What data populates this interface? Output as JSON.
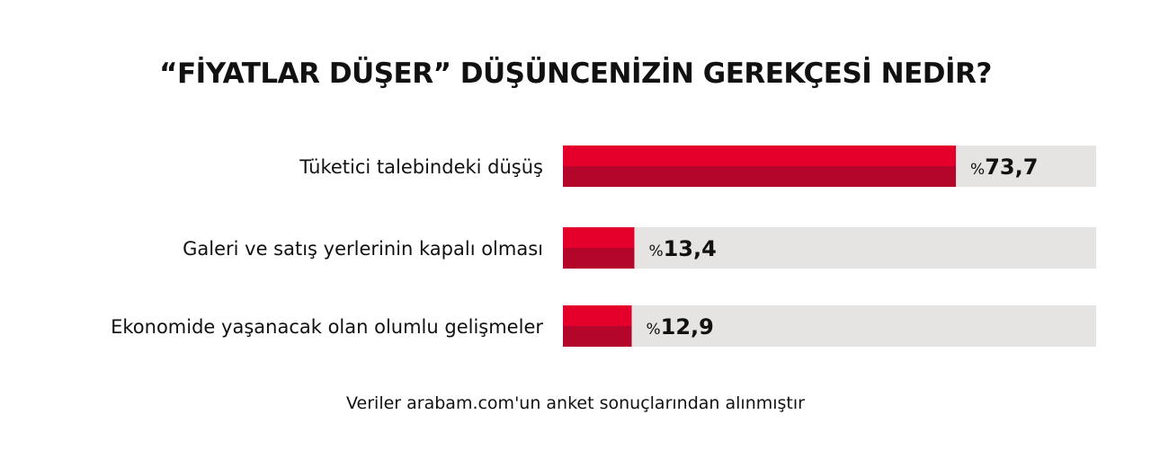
{
  "title": "“FİYATLAR DÜŞER” DÜŞÜNCENİZİN GEREKÇESİ NEDİR?",
  "footnote": "Veriler arabam.com'un anket sonuçlarından alınmıştır",
  "colors": {
    "bar_top": "#e4002b",
    "bar_bottom": "#b3062a",
    "track": "#e5e4e2",
    "highlight": "#f7d23e",
    "text": "#111111"
  },
  "chart_data": {
    "type": "bar",
    "orientation": "horizontal",
    "categories": [
      "Tüketici talebindeki düşüş",
      "Galeri ve satış yerlerinin kapalı olması",
      "Ekonomide yaşanacak olan olumlu gelişmeler"
    ],
    "values": [
      73.7,
      13.4,
      12.9
    ],
    "value_prefix": "%",
    "value_labels": [
      "73,7",
      "13,4",
      "12,9"
    ],
    "xlim": [
      0,
      100
    ],
    "grid": false
  }
}
